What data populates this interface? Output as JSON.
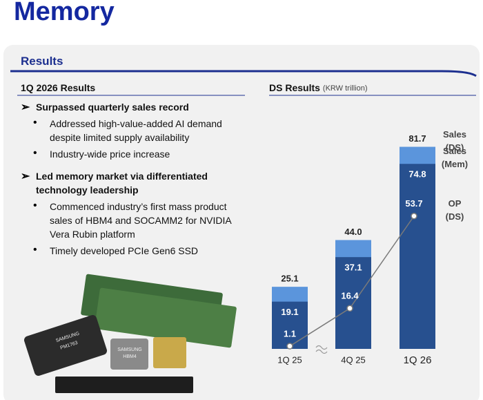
{
  "header": {
    "title": "Memory",
    "section": "Results"
  },
  "left": {
    "heading": "1Q 2026 Results",
    "points": [
      {
        "title": "Surpassed quarterly sales record",
        "bullets": [
          "Addressed high-value-added AI demand despite limited supply availability",
          "Industry-wide price increase"
        ]
      },
      {
        "title": "Led memory market via differentiated technology leadership",
        "bullets": [
          "Commenced industry’s first mass product sales of HBM4 and SOCAMM2 for NVIDIA Vera Rubin platform",
          "Timely developed PCIe Gen6 SSD"
        ]
      }
    ],
    "product_labels": [
      "SAMSUNG",
      "PM1763",
      "SAMSUNG",
      "HBM4"
    ]
  },
  "chart_data": {
    "type": "bar",
    "title": "DS Results",
    "subtitle": "(KRW trillion)",
    "categories": [
      "1Q 25",
      "4Q 25",
      "1Q 26"
    ],
    "series": [
      {
        "name": "Sales (DS)",
        "type": "bar",
        "color": "#5b95dc",
        "values": [
          25.1,
          44.0,
          81.7
        ],
        "value_labels": [
          "25.1",
          "44.0",
          "81.7"
        ]
      },
      {
        "name": "Sales (Mem)",
        "type": "bar",
        "color": "#27508f",
        "values": [
          19.1,
          37.1,
          74.8
        ]
      },
      {
        "name": "OP (DS)",
        "type": "line",
        "color": "#7a7a7a",
        "values": [
          1.1,
          16.4,
          53.7
        ]
      }
    ]
  }
}
